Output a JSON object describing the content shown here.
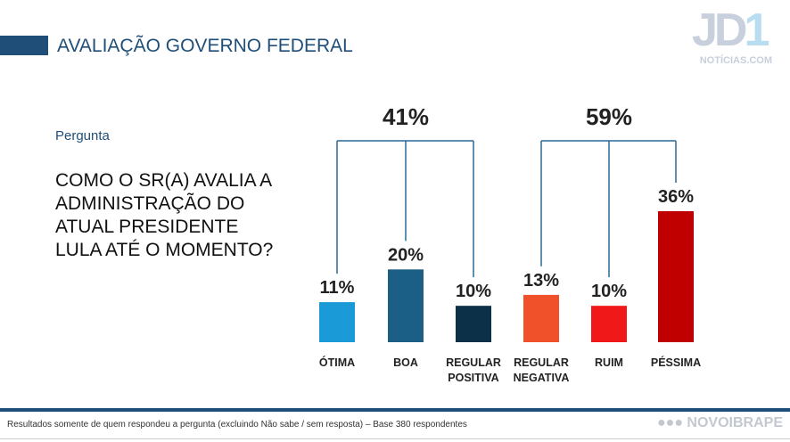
{
  "header": {
    "title": "AVALIAÇÃO GOVERNO FEDERAL",
    "logo_text": "JD1",
    "logo_sub": "NOTÍCIAS.COM"
  },
  "question": {
    "label": "Pergunta",
    "text": "COMO O SR(A) AVALIA A ADMINISTRAÇÃO DO ATUAL PRESIDENTE LULA ATÉ O MOMENTO?"
  },
  "footer": {
    "note": "Resultados somente de quem respondeu a pergunta (excluindo Não sabe / sem resposta) – Base 380 respondentes",
    "brand": "NOVOIBRAPE"
  },
  "chart_data": {
    "type": "bar",
    "categories": [
      "ÓTIMA",
      "BOA",
      "REGULAR POSITIVA",
      "REGULAR NEGATIVA",
      "RUIM",
      "PÉSSIMA"
    ],
    "values": [
      11,
      20,
      10,
      13,
      10,
      36
    ],
    "labels": [
      "11%",
      "20%",
      "10%",
      "13%",
      "10%",
      "36%"
    ],
    "colors": [
      "#1a9ad6",
      "#1c5f86",
      "#0d3049",
      "#f0502a",
      "#f01818",
      "#c00000"
    ],
    "groups": [
      {
        "label": "41%",
        "members": [
          0,
          1,
          2
        ]
      },
      {
        "label": "59%",
        "members": [
          3,
          4,
          5
        ]
      }
    ],
    "ylim": [
      0,
      40
    ]
  }
}
